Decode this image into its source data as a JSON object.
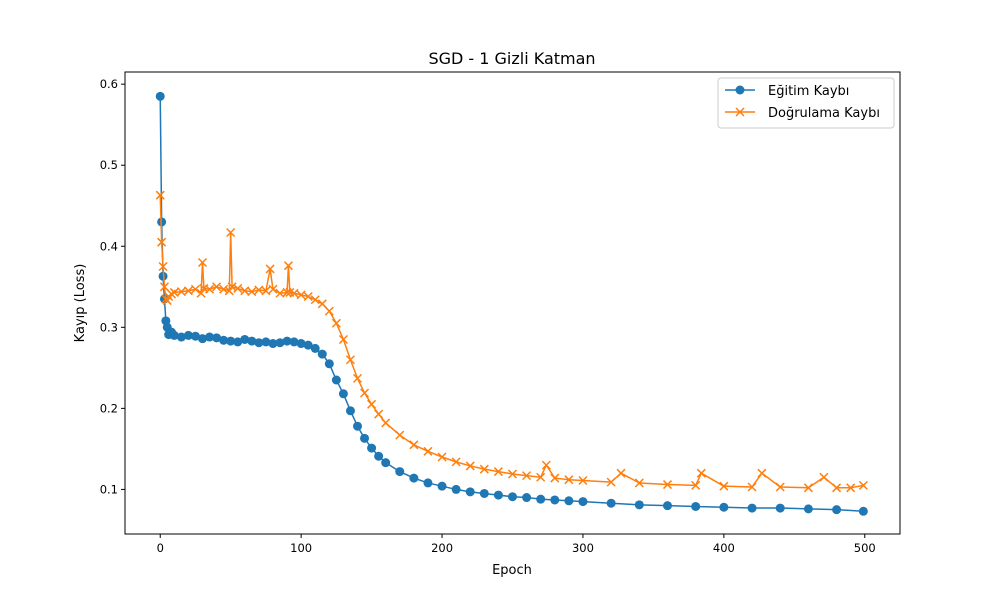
{
  "chart_data": {
    "type": "line",
    "title": "SGD - 1 Gizli Katman",
    "xlabel": "Epoch",
    "ylabel": "Kayıp (Loss)",
    "xlim": [
      -25,
      525
    ],
    "ylim": [
      0.045,
      0.615
    ],
    "xticks": [
      0,
      100,
      200,
      300,
      400,
      500
    ],
    "yticks": [
      0.1,
      0.2,
      0.3,
      0.4,
      0.5,
      0.6
    ],
    "grid": false,
    "legend_position": "top-right",
    "series": [
      {
        "name": "Eğitim Kaybı",
        "color": "#1f77b4",
        "marker": "circle",
        "x": [
          0,
          1,
          2,
          3,
          4,
          5,
          6,
          8,
          10,
          15,
          20,
          25,
          30,
          35,
          40,
          45,
          50,
          55,
          60,
          65,
          70,
          75,
          80,
          85,
          90,
          95,
          100,
          105,
          110,
          115,
          120,
          125,
          130,
          135,
          140,
          145,
          150,
          155,
          160,
          170,
          180,
          190,
          200,
          210,
          220,
          230,
          240,
          250,
          260,
          270,
          280,
          290,
          300,
          320,
          340,
          360,
          380,
          400,
          420,
          440,
          460,
          480,
          499
        ],
        "values": [
          0.585,
          0.43,
          0.363,
          0.335,
          0.308,
          0.3,
          0.291,
          0.294,
          0.29,
          0.288,
          0.29,
          0.289,
          0.286,
          0.288,
          0.287,
          0.284,
          0.283,
          0.282,
          0.285,
          0.283,
          0.281,
          0.282,
          0.28,
          0.281,
          0.283,
          0.282,
          0.28,
          0.278,
          0.274,
          0.267,
          0.255,
          0.235,
          0.218,
          0.197,
          0.178,
          0.163,
          0.151,
          0.141,
          0.133,
          0.122,
          0.114,
          0.108,
          0.104,
          0.1,
          0.097,
          0.095,
          0.093,
          0.091,
          0.09,
          0.088,
          0.087,
          0.086,
          0.085,
          0.083,
          0.081,
          0.08,
          0.079,
          0.078,
          0.077,
          0.077,
          0.076,
          0.075,
          0.073
        ]
      },
      {
        "name": "Doğrulama Kaybı",
        "color": "#ff7f0e",
        "marker": "x",
        "x": [
          0,
          1,
          2,
          3,
          4,
          5,
          6,
          8,
          10,
          15,
          20,
          25,
          29,
          30,
          31,
          35,
          40,
          45,
          49,
          50,
          51,
          55,
          60,
          65,
          70,
          75,
          78,
          80,
          85,
          90,
          91,
          92,
          95,
          100,
          105,
          110,
          115,
          120,
          125,
          130,
          135,
          140,
          145,
          150,
          155,
          160,
          170,
          180,
          190,
          200,
          210,
          220,
          230,
          240,
          250,
          260,
          270,
          274,
          280,
          290,
          300,
          320,
          327,
          340,
          360,
          380,
          384,
          400,
          420,
          427,
          440,
          460,
          471,
          480,
          490,
          499
        ],
        "values": [
          0.463,
          0.405,
          0.375,
          0.35,
          0.335,
          0.333,
          0.338,
          0.341,
          0.343,
          0.344,
          0.345,
          0.347,
          0.342,
          0.38,
          0.348,
          0.347,
          0.35,
          0.347,
          0.345,
          0.417,
          0.35,
          0.348,
          0.345,
          0.344,
          0.346,
          0.345,
          0.372,
          0.347,
          0.342,
          0.343,
          0.376,
          0.343,
          0.342,
          0.34,
          0.338,
          0.334,
          0.329,
          0.32,
          0.305,
          0.285,
          0.26,
          0.237,
          0.219,
          0.205,
          0.193,
          0.182,
          0.167,
          0.155,
          0.147,
          0.14,
          0.134,
          0.129,
          0.125,
          0.122,
          0.119,
          0.117,
          0.115,
          0.13,
          0.114,
          0.112,
          0.111,
          0.109,
          0.12,
          0.108,
          0.106,
          0.105,
          0.12,
          0.104,
          0.103,
          0.12,
          0.103,
          0.102,
          0.115,
          0.102,
          0.102,
          0.105
        ]
      }
    ]
  }
}
